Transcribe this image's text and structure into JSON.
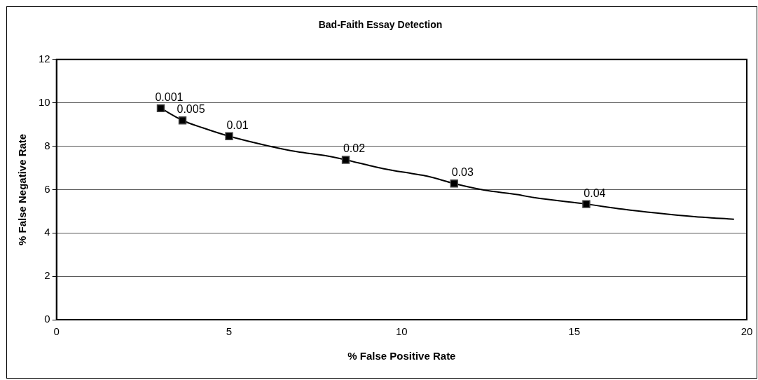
{
  "chart_data": {
    "type": "line",
    "title": "Bad-Faith Essay Detection",
    "xlabel": "% False Positive Rate",
    "ylabel": "% False Negative Rate",
    "xlim": [
      0,
      20
    ],
    "xticks": [
      0,
      5,
      10,
      15,
      20
    ],
    "ylim": [
      0,
      12
    ],
    "yticks": [
      0,
      2,
      4,
      6,
      8,
      10,
      12
    ],
    "grid": "y",
    "legend": false,
    "series": [
      {
        "type": "line",
        "color": "#000000",
        "marker": "none",
        "x": [
          3.02,
          3.65,
          4.25,
          5.0,
          6.12,
          6.96,
          7.85,
          8.38,
          9.04,
          9.46,
          10.29,
          10.74,
          11.52,
          12.38,
          13.35,
          13.83,
          15.35,
          16.4,
          17.38,
          18.48,
          19.63
        ],
        "values": [
          9.75,
          9.19,
          8.84,
          8.46,
          8.02,
          7.75,
          7.55,
          7.37,
          7.12,
          6.97,
          6.74,
          6.62,
          6.28,
          5.98,
          5.77,
          5.63,
          5.33,
          5.1,
          4.92,
          4.75,
          4.63
        ]
      },
      {
        "type": "scatter",
        "color": "#000000",
        "marker": "square",
        "x": [
          3.02,
          3.65,
          5.0,
          8.38,
          11.52,
          15.35
        ],
        "values": [
          9.75,
          9.19,
          8.46,
          7.37,
          6.28,
          5.33
        ]
      }
    ],
    "annotations": [
      {
        "text": "0.001",
        "x": 3.02,
        "y": 9.75
      },
      {
        "text": "0.005",
        "x": 3.65,
        "y": 9.19
      },
      {
        "text": "0.01",
        "x": 5.0,
        "y": 8.46
      },
      {
        "text": "0.02",
        "x": 8.38,
        "y": 7.37
      },
      {
        "text": "0.03",
        "x": 11.52,
        "y": 6.28
      },
      {
        "text": "0.04",
        "x": 15.35,
        "y": 5.33
      }
    ]
  }
}
